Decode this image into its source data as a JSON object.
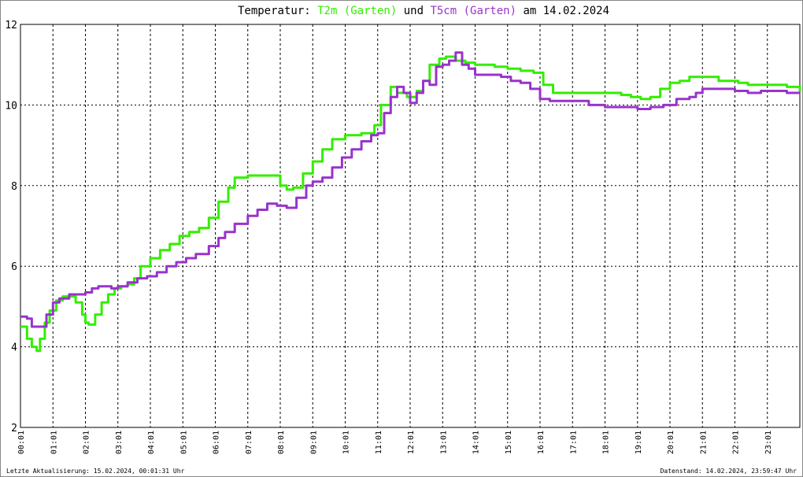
{
  "chart_data": {
    "type": "line",
    "title_parts": [
      {
        "text": "Temperatur: ",
        "color": "#000000"
      },
      {
        "text": "T2m (Garten)",
        "color": "#33ee00"
      },
      {
        "text": " und ",
        "color": "#000000"
      },
      {
        "text": "T5cm (Garten)",
        "color": "#9933cc"
      },
      {
        "text": " am 14.02.2024",
        "color": "#000000"
      }
    ],
    "xlabel": "",
    "ylabel": "",
    "xlim": [
      0,
      24
    ],
    "ylim": [
      2,
      12
    ],
    "grid": true,
    "y_ticks": [
      2,
      4,
      6,
      8,
      10,
      12
    ],
    "x_tick_labels": [
      "00:01",
      "01:01",
      "02:01",
      "03:01",
      "04:01",
      "05:01",
      "06:01",
      "07:01",
      "08:01",
      "09:01",
      "10:01",
      "11:01",
      "12:01",
      "13:01",
      "14:01",
      "15:01",
      "16:01",
      "17:01",
      "18:01",
      "19:01",
      "20:01",
      "21:01",
      "22:01",
      "23:01"
    ],
    "series": [
      {
        "name": "T2m (Garten)",
        "color": "#33ee00",
        "x": [
          0.0,
          0.2,
          0.35,
          0.5,
          0.6,
          0.75,
          0.9,
          1.1,
          1.3,
          1.5,
          1.7,
          1.9,
          2.0,
          2.1,
          2.3,
          2.5,
          2.7,
          2.9,
          3.1,
          3.3,
          3.5,
          3.7,
          4.0,
          4.3,
          4.6,
          4.9,
          5.2,
          5.5,
          5.8,
          6.1,
          6.4,
          6.6,
          7.0,
          7.4,
          7.8,
          8.0,
          8.2,
          8.4,
          8.7,
          9.0,
          9.3,
          9.6,
          10.0,
          10.5,
          10.9,
          11.1,
          11.4,
          11.6,
          11.9,
          12.2,
          12.4,
          12.6,
          12.9,
          13.1,
          13.4,
          13.7,
          14.0,
          14.3,
          14.6,
          15.0,
          15.4,
          15.8,
          16.1,
          16.4,
          17.0,
          17.6,
          18.2,
          18.5,
          18.8,
          19.1,
          19.4,
          19.7,
          20.0,
          20.3,
          20.6,
          20.9,
          21.2,
          21.5,
          21.8,
          22.1,
          22.4,
          22.7,
          23.0,
          23.3,
          23.6,
          24.0
        ],
        "y": [
          4.5,
          4.2,
          4.0,
          3.9,
          4.2,
          4.6,
          4.9,
          5.15,
          5.25,
          5.25,
          5.1,
          4.8,
          4.6,
          4.55,
          4.8,
          5.1,
          5.3,
          5.45,
          5.5,
          5.55,
          5.7,
          6.0,
          6.2,
          6.4,
          6.55,
          6.75,
          6.85,
          6.95,
          7.2,
          7.6,
          7.95,
          8.2,
          8.25,
          8.25,
          8.25,
          8.0,
          7.9,
          7.95,
          8.3,
          8.6,
          8.9,
          9.15,
          9.25,
          9.3,
          9.5,
          10.0,
          10.45,
          10.3,
          10.2,
          10.35,
          10.6,
          11.0,
          11.15,
          11.2,
          11.1,
          11.05,
          11.0,
          11.0,
          10.95,
          10.9,
          10.85,
          10.8,
          10.5,
          10.3,
          10.3,
          10.3,
          10.3,
          10.25,
          10.2,
          10.15,
          10.2,
          10.4,
          10.55,
          10.6,
          10.7,
          10.7,
          10.7,
          10.6,
          10.6,
          10.55,
          10.5,
          10.5,
          10.5,
          10.5,
          10.45,
          10.35
        ]
      },
      {
        "name": "T5cm (Garten)",
        "color": "#9933cc",
        "x": [
          0.0,
          0.2,
          0.35,
          0.6,
          0.8,
          1.0,
          1.2,
          1.5,
          1.8,
          2.0,
          2.2,
          2.4,
          2.6,
          2.8,
          3.0,
          3.3,
          3.6,
          3.9,
          4.2,
          4.5,
          4.8,
          5.1,
          5.4,
          5.8,
          6.1,
          6.3,
          6.6,
          7.0,
          7.3,
          7.6,
          7.9,
          8.2,
          8.5,
          8.8,
          9.0,
          9.3,
          9.6,
          9.9,
          10.2,
          10.5,
          10.8,
          11.0,
          11.2,
          11.4,
          11.6,
          11.8,
          12.0,
          12.2,
          12.4,
          12.6,
          12.8,
          13.0,
          13.2,
          13.4,
          13.6,
          13.8,
          14.0,
          14.2,
          14.5,
          14.8,
          15.1,
          15.4,
          15.7,
          16.0,
          16.3,
          16.6,
          17.0,
          17.5,
          18.0,
          18.5,
          19.0,
          19.4,
          19.8,
          20.2,
          20.6,
          20.8,
          21.0,
          21.3,
          21.6,
          22.0,
          22.4,
          22.8,
          23.2,
          23.6,
          24.0
        ],
        "y": [
          4.75,
          4.7,
          4.5,
          4.5,
          4.8,
          5.1,
          5.2,
          5.3,
          5.3,
          5.35,
          5.45,
          5.5,
          5.5,
          5.45,
          5.5,
          5.6,
          5.7,
          5.75,
          5.85,
          6.0,
          6.1,
          6.2,
          6.3,
          6.5,
          6.7,
          6.85,
          7.05,
          7.25,
          7.4,
          7.55,
          7.5,
          7.45,
          7.7,
          8.0,
          8.1,
          8.2,
          8.45,
          8.7,
          8.9,
          9.1,
          9.25,
          9.3,
          9.8,
          10.2,
          10.45,
          10.3,
          10.05,
          10.3,
          10.6,
          10.5,
          10.95,
          11.0,
          11.1,
          11.3,
          11.0,
          10.9,
          10.75,
          10.75,
          10.75,
          10.7,
          10.6,
          10.55,
          10.4,
          10.15,
          10.1,
          10.1,
          10.1,
          10.0,
          9.95,
          9.95,
          9.9,
          9.95,
          10.0,
          10.15,
          10.2,
          10.3,
          10.4,
          10.4,
          10.4,
          10.35,
          10.3,
          10.35,
          10.35,
          10.3,
          10.3
        ]
      }
    ]
  },
  "footer": {
    "left": "Letzte Aktualisierung: 15.02.2024, 00:01:31 Uhr",
    "right": "Datenstand: 14.02.2024, 23:59:47 Uhr"
  }
}
